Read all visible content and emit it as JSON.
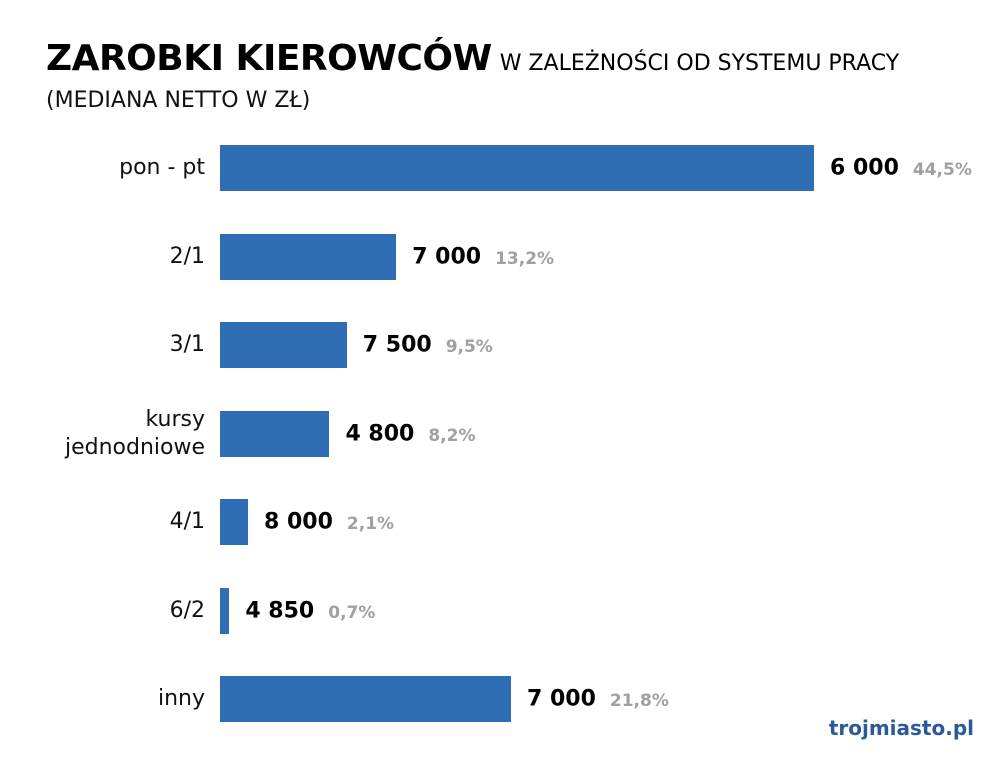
{
  "chart_data": {
    "type": "bar",
    "title": "ZAROBKI KIEROWCÓW",
    "title_suffix": "W ZALEŻNOŚCI OD SYSTEMU PRACY",
    "subtitle": "(MEDIANA NETTO W ZŁ)",
    "categories": [
      "pon - pt",
      "2/1",
      "3/1",
      "kursy jednodniowe",
      "4/1",
      "6/2",
      "inny"
    ],
    "values": [
      44.5,
      13.2,
      9.5,
      8.2,
      2.1,
      0.7,
      21.8
    ],
    "value_labels": [
      "44,5%",
      "13,2%",
      "9,5%",
      "8,2%",
      "2,1%",
      "0,7%",
      "21,8%"
    ],
    "salaries": [
      6000,
      7000,
      7500,
      4800,
      8000,
      4850,
      7000
    ],
    "salary_labels": [
      "6 000",
      "7 000",
      "7 500",
      "4 800",
      "8 000",
      "4 850",
      "7 000"
    ],
    "color": "#2f6db5"
  },
  "logo": "trojmiasto.pl"
}
